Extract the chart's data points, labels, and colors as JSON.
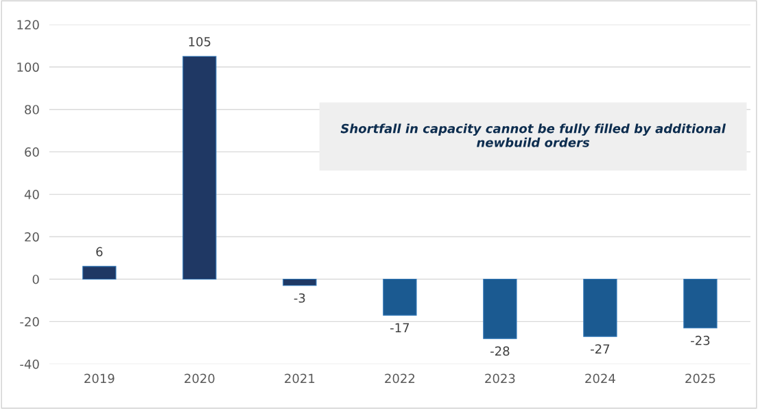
{
  "chart_data": {
    "type": "bar",
    "categories": [
      "2019",
      "2020",
      "2021",
      "2022",
      "2023",
      "2024",
      "2025"
    ],
    "values": [
      6,
      105,
      -3,
      -17,
      -28,
      -27,
      -23
    ],
    "colors": [
      "#1f3864",
      "#1f3864",
      "#1f3864",
      "#1b5a91",
      "#1b5a91",
      "#1b5a91",
      "#1b5a91"
    ],
    "ylim": [
      -40,
      120
    ],
    "yticks": [
      -40,
      -20,
      0,
      20,
      40,
      60,
      80,
      100,
      120
    ],
    "grid": "y",
    "data_labels": true,
    "annotations": [
      "Shortfall in capacity cannot be fully filled by additional newbuild orders"
    ]
  }
}
